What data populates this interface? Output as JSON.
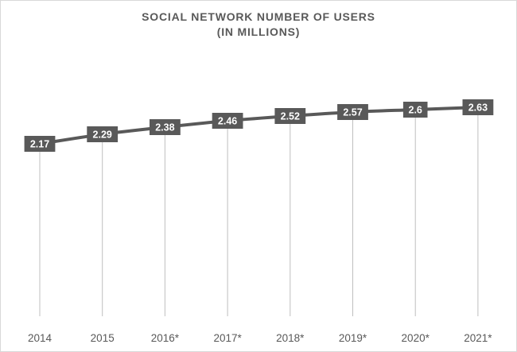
{
  "chart_data": {
    "type": "line",
    "title": "SOCIAL NETWORK NUMBER OF USERS",
    "subtitle": "(IN MILLIONS)",
    "categories": [
      "2014",
      "2015",
      "2016*",
      "2017*",
      "2018*",
      "2019*",
      "2020*",
      "2021*"
    ],
    "series": [
      {
        "values": [
          2.17,
          2.29,
          2.38,
          2.46,
          2.52,
          2.57,
          2.6,
          2.63
        ],
        "data_labels": [
          "2.17",
          "2.29",
          "2.38",
          "2.46",
          "2.52",
          "2.57",
          "2.6",
          "2.63"
        ]
      }
    ],
    "xlabel": "",
    "ylabel": "",
    "ylim": [
      0,
      3.0
    ],
    "grid": false,
    "legend": "none",
    "drop_lines": true,
    "colors": {
      "line": "#595959",
      "label_box": "#595959",
      "label_text": "#ffffff",
      "drop_line": "#bfbfbf",
      "tick_text": "#595959"
    }
  }
}
